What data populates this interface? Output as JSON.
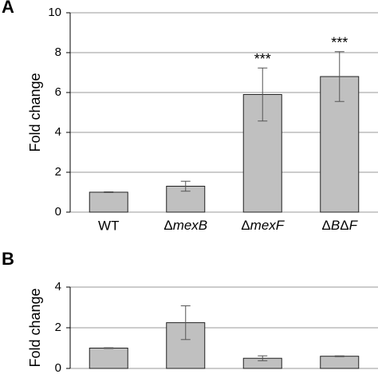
{
  "chart_data": [
    {
      "type": "bar",
      "panel_label": "A",
      "ylabel": "Fold change",
      "categories": [
        "WT",
        "ΔmexB",
        "ΔmexF",
        "ΔBΔF"
      ],
      "values": [
        1.0,
        1.3,
        5.9,
        6.8
      ],
      "errors": [
        0.02,
        0.25,
        1.33,
        1.25
      ],
      "annotations": [
        null,
        null,
        "***",
        "***"
      ],
      "color": "#c0c0c0",
      "ylim": [
        0,
        10
      ],
      "yticks": [
        0,
        2,
        4,
        6,
        8,
        10
      ],
      "grid": true
    },
    {
      "type": "bar",
      "panel_label": "B",
      "ylabel": "Fold change",
      "categories": [
        null,
        null,
        null,
        null
      ],
      "values": [
        1.0,
        2.25,
        0.5,
        0.6
      ],
      "errors": [
        0.02,
        0.83,
        0.12,
        0.02
      ],
      "color": "#c0c0c0",
      "ylim": [
        0,
        4
      ],
      "yticks": [
        0,
        2,
        4
      ],
      "grid": true
    }
  ]
}
